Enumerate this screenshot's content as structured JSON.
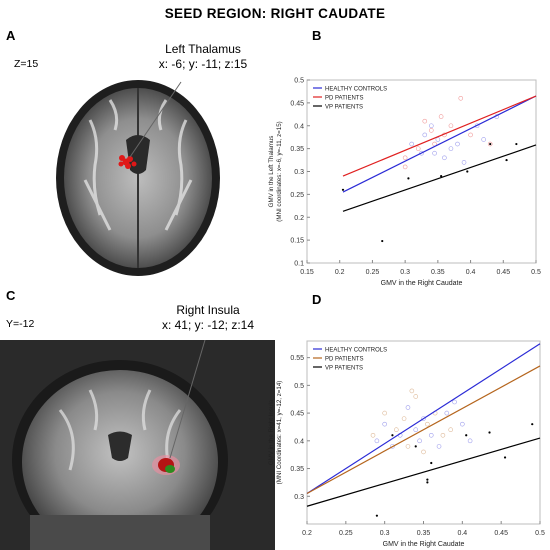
{
  "figure": {
    "title": "SEED REGION: RIGHT CAUDATE",
    "panels": {
      "A": {
        "letter": "A",
        "slice": "Z=15",
        "region_name": "Left Thalamus",
        "coords": "x: -6; y: -11; z:15"
      },
      "B": {
        "letter": "B"
      },
      "C": {
        "letter": "C",
        "slice": "Y=-12",
        "region_name": "Right Insula",
        "coords": "x: 41; y: -12; z:14"
      },
      "D": {
        "letter": "D"
      }
    }
  },
  "chart_data": [
    {
      "id": "B",
      "type": "scatter",
      "xlabel": "GMV in the Right Caudate",
      "ylabel_lines": [
        "GMV in the Left Thalamus",
        "(MNI coordinates: x=-6, y=-11, z=15)"
      ],
      "xlim": [
        0.15,
        0.5
      ],
      "ylim": [
        0.1,
        0.5
      ],
      "xticks": [
        "0.15",
        "0.2",
        "0.25",
        "0.3",
        "0.35",
        "0.4",
        "0.45",
        "0.5"
      ],
      "xtick_values": [
        0.15,
        0.2,
        0.25,
        0.3,
        0.35,
        0.4,
        0.45,
        0.5
      ],
      "yticks": [
        "0.1",
        "0.15",
        "0.2",
        "0.25",
        "0.3",
        "0.35",
        "0.4",
        "0.45",
        "0.5"
      ],
      "ytick_values": [
        0.1,
        0.15,
        0.2,
        0.25,
        0.3,
        0.35,
        0.4,
        0.45,
        0.5
      ],
      "legend_position": "top-left",
      "series": [
        {
          "name": "HEALTHY CONTROLS",
          "color": "#2b2bd6",
          "marker": "circle",
          "line": [
            [
              0.205,
              0.255
            ],
            [
              0.5,
              0.465
            ]
          ],
          "points": [
            [
              0.31,
              0.36
            ],
            [
              0.33,
              0.38
            ],
            [
              0.34,
              0.4
            ],
            [
              0.35,
              0.37
            ],
            [
              0.36,
              0.33
            ],
            [
              0.37,
              0.35
            ],
            [
              0.38,
              0.36
            ],
            [
              0.39,
              0.32
            ],
            [
              0.41,
              0.4
            ],
            [
              0.42,
              0.37
            ],
            [
              0.44,
              0.42
            ],
            [
              0.345,
              0.34
            ],
            [
              0.325,
              0.34
            ]
          ]
        },
        {
          "name": "PD PATIENTS",
          "color": "#e02020",
          "marker": "circle",
          "line": [
            [
              0.205,
              0.29
            ],
            [
              0.5,
              0.465
            ]
          ],
          "points": [
            [
              0.3,
              0.33
            ],
            [
              0.32,
              0.35
            ],
            [
              0.33,
              0.41
            ],
            [
              0.34,
              0.39
            ],
            [
              0.355,
              0.42
            ],
            [
              0.37,
              0.4
            ],
            [
              0.385,
              0.46
            ],
            [
              0.4,
              0.38
            ],
            [
              0.43,
              0.36
            ],
            [
              0.3,
              0.31
            ],
            [
              0.345,
              0.36
            ],
            [
              0.36,
              0.38
            ]
          ]
        },
        {
          "name": "VP PATIENTS",
          "color": "#000000",
          "marker": "dot",
          "line": [
            [
              0.205,
              0.213
            ],
            [
              0.5,
              0.358
            ]
          ],
          "points": [
            [
              0.205,
              0.26
            ],
            [
              0.265,
              0.148
            ],
            [
              0.305,
              0.285
            ],
            [
              0.355,
              0.29
            ],
            [
              0.395,
              0.3
            ],
            [
              0.43,
              0.36
            ],
            [
              0.455,
              0.325
            ],
            [
              0.47,
              0.36
            ]
          ]
        }
      ]
    },
    {
      "id": "D",
      "type": "scatter",
      "xlabel": "GMV in the Right Caudate",
      "ylabel_lines": [
        "GMV in the Right Insula",
        "(MNI Coordinates: x=41, y=-12, z=14)"
      ],
      "xlim": [
        0.2,
        0.5
      ],
      "ylim": [
        0.25,
        0.58
      ],
      "xticks": [
        "0.2",
        "0.25",
        "0.3",
        "0.35",
        "0.4",
        "0.45",
        "0.5"
      ],
      "xtick_values": [
        0.2,
        0.25,
        0.3,
        0.35,
        0.4,
        0.45,
        0.5
      ],
      "yticks": [
        "0.3",
        "0.35",
        "0.4",
        "0.45",
        "0.5",
        "0.55"
      ],
      "ytick_values": [
        0.3,
        0.35,
        0.4,
        0.45,
        0.5,
        0.55
      ],
      "legend_position": "top-left",
      "series": [
        {
          "name": "HEALTHY CONTROLS",
          "color": "#2b2bd6",
          "marker": "circle",
          "line": [
            [
              0.2,
              0.305
            ],
            [
              0.5,
              0.575
            ]
          ],
          "points": [
            [
              0.29,
              0.4
            ],
            [
              0.3,
              0.43
            ],
            [
              0.31,
              0.39
            ],
            [
              0.32,
              0.41
            ],
            [
              0.33,
              0.46
            ],
            [
              0.34,
              0.42
            ],
            [
              0.345,
              0.4
            ],
            [
              0.35,
              0.44
            ],
            [
              0.36,
              0.41
            ],
            [
              0.37,
              0.39
            ],
            [
              0.38,
              0.45
            ],
            [
              0.39,
              0.47
            ],
            [
              0.4,
              0.43
            ],
            [
              0.41,
              0.4
            ]
          ]
        },
        {
          "name": "PD PATIENTS",
          "color": "#b5651d",
          "marker": "circle",
          "line": [
            [
              0.2,
              0.305
            ],
            [
              0.5,
              0.535
            ]
          ],
          "points": [
            [
              0.285,
              0.41
            ],
            [
              0.3,
              0.45
            ],
            [
              0.315,
              0.42
            ],
            [
              0.325,
              0.44
            ],
            [
              0.335,
              0.49
            ],
            [
              0.34,
              0.48
            ],
            [
              0.35,
              0.38
            ],
            [
              0.355,
              0.43
            ],
            [
              0.365,
              0.45
            ],
            [
              0.375,
              0.41
            ],
            [
              0.385,
              0.42
            ],
            [
              0.33,
              0.39
            ]
          ]
        },
        {
          "name": "VP PATIENTS",
          "color": "#000000",
          "marker": "dot",
          "line": [
            [
              0.2,
              0.282
            ],
            [
              0.5,
              0.405
            ]
          ],
          "points": [
            [
              0.29,
              0.265
            ],
            [
              0.31,
              0.41
            ],
            [
              0.34,
              0.39
            ],
            [
              0.355,
              0.33
            ],
            [
              0.36,
              0.36
            ],
            [
              0.405,
              0.41
            ],
            [
              0.435,
              0.415
            ],
            [
              0.455,
              0.37
            ],
            [
              0.49,
              0.43
            ],
            [
              0.355,
              0.325
            ]
          ]
        }
      ]
    }
  ]
}
